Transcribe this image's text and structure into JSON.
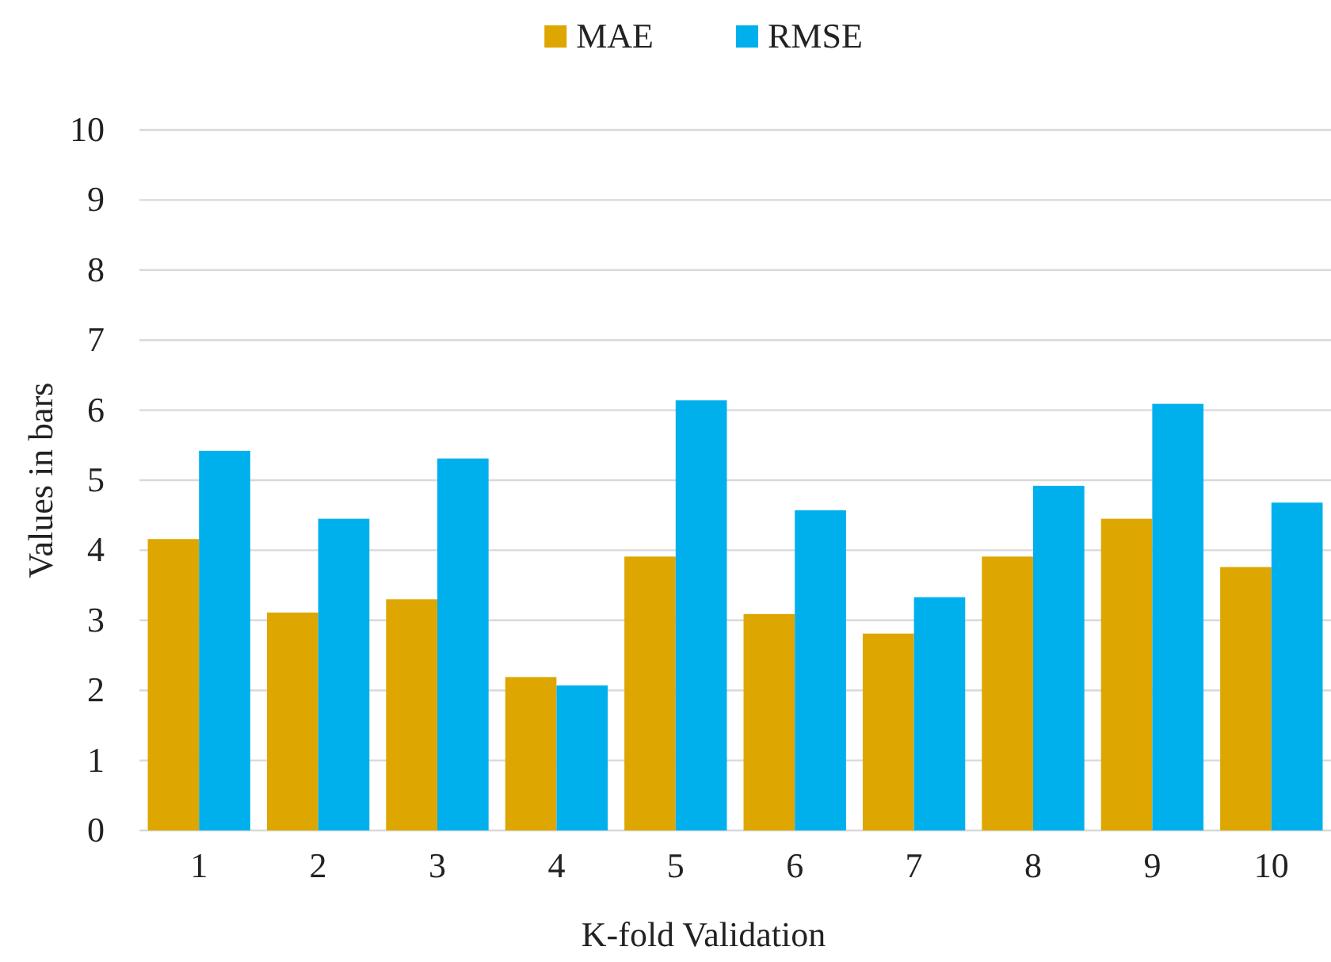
{
  "chart_data": {
    "type": "bar",
    "xlabel": "K-fold Validation",
    "ylabel": "Values in bars",
    "categories": [
      "1",
      "2",
      "3",
      "4",
      "5",
      "6",
      "7",
      "8",
      "9",
      "10"
    ],
    "series": [
      {
        "name": "MAE",
        "color": "#dea600",
        "values": [
          4.16,
          3.11,
          3.3,
          2.19,
          3.91,
          3.09,
          2.81,
          3.91,
          4.45,
          3.76
        ]
      },
      {
        "name": "RMSE",
        "color": "#00b0ec",
        "values": [
          5.42,
          4.45,
          5.31,
          2.07,
          6.14,
          4.57,
          3.33,
          4.92,
          6.09,
          4.68
        ]
      }
    ],
    "ylim": [
      0,
      10
    ],
    "yticks": [
      0,
      1,
      2,
      3,
      4,
      5,
      6,
      7,
      8,
      9,
      10
    ],
    "grid": "y",
    "legend": "top"
  }
}
